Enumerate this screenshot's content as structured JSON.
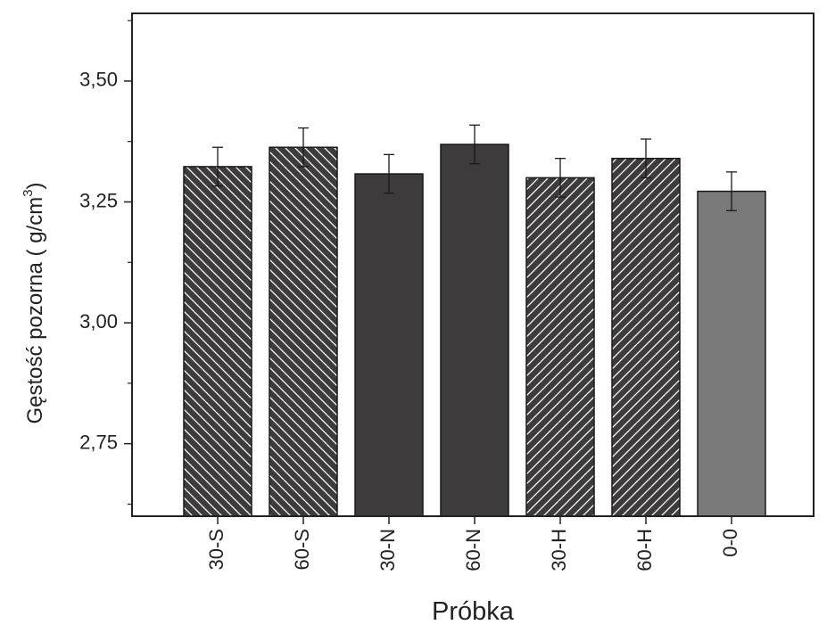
{
  "chart_data": {
    "type": "bar",
    "title": "",
    "xlabel": "Próbka",
    "ylabel": "Gęstość pozorna  ( g/cm",
    "ylabel_superscript": "3",
    "ylabel_close": ")",
    "ylim": [
      2.6,
      3.64
    ],
    "yticks": [
      2.75,
      3.0,
      3.25,
      3.5
    ],
    "ytick_labels": [
      "2,75",
      "3,00",
      "3,25",
      "3,50"
    ],
    "grid": false,
    "legend": "none",
    "categories": [
      "30-S",
      "60-S",
      "30-N",
      "60-N",
      "30-H",
      "60-H",
      "0-0"
    ],
    "values": [
      3.323,
      3.363,
      3.308,
      3.369,
      3.3,
      3.34,
      3.272
    ],
    "errors": [
      0.04,
      0.04,
      0.04,
      0.04,
      0.04,
      0.04,
      0.04
    ],
    "fills": [
      {
        "color": "#3e3b3c",
        "hatch": "backslash"
      },
      {
        "color": "#3e3b3c",
        "hatch": "backslash"
      },
      {
        "color": "#3e3b3c",
        "hatch": "none"
      },
      {
        "color": "#3e3b3c",
        "hatch": "none"
      },
      {
        "color": "#3e3b3c",
        "hatch": "slash"
      },
      {
        "color": "#3e3b3c",
        "hatch": "slash"
      },
      {
        "color": "#7a7a7a",
        "hatch": "none"
      }
    ]
  }
}
